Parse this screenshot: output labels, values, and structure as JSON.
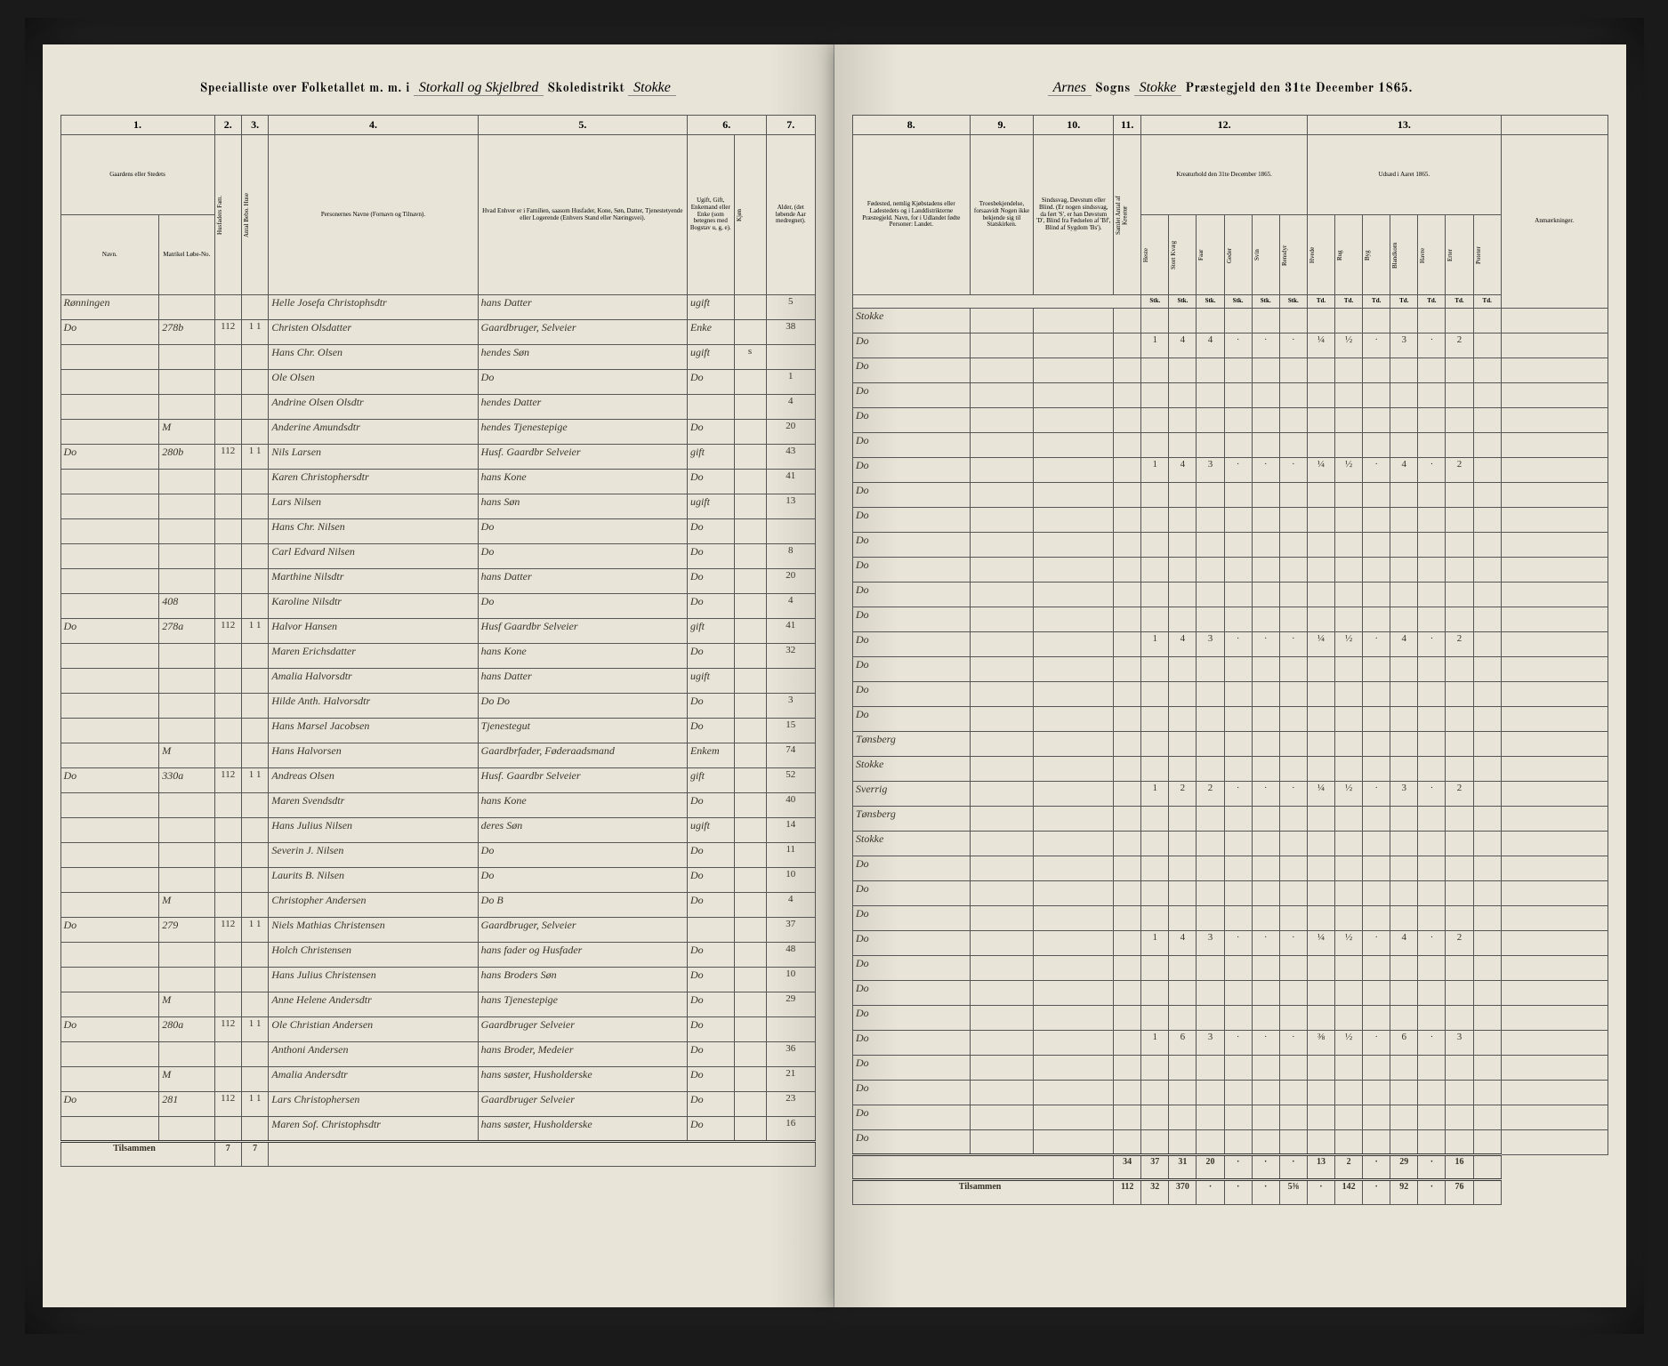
{
  "header": {
    "left_printed_1": "Specialliste over Folketallet m. m. i",
    "left_cursive_1": "Storkall og Skjelbred",
    "left_printed_2": "Skoledistrikt",
    "left_cursive_2": "Stokke",
    "right_cursive_1": "Arnes",
    "right_printed_1": "Sogns",
    "right_cursive_2": "Stokke",
    "right_printed_2": "Præstegjeld den 31te December 1865."
  },
  "left_columns": {
    "c1": "1.",
    "c2": "2.",
    "c3": "3.",
    "c4": "4.",
    "c5": "5.",
    "c6": "6.",
    "c7": "7.",
    "h1": "Gaardens eller Stedets",
    "h1a": "Navn.",
    "h1b": "Matrikel Løbe-No.",
    "h2": "Husfaders Fam.",
    "h3": "Antal Bebo. Huse",
    "h4": "Personernes Navne (Fornavn og Tilnavn).",
    "h5": "Hvad Enhver er i Familien, saasom Husfader, Kone, Søn, Datter, Tjenestetyende eller Logerende (Enhvers Stand eller Næringsvei).",
    "h6a": "Ugift, Gift, Enkemand eller Enke (som betegnes med Bogstav u, g, e).",
    "h6b": "Kjøn",
    "h7": "Alder, (det løbende Aar medregnet)."
  },
  "right_columns": {
    "c8": "8.",
    "c9": "9.",
    "c10": "10.",
    "c11": "11.",
    "c12": "12.",
    "c13": "13.",
    "h8": "Fødested, nemlig Kjøbstadens eller Ladestedets og i Landdistrikterne Præstegjeld. Navn, for i Udlandet fødte Personer: Landet.",
    "h9": "Troesbekjendelse, forsaavidt Nogen ikke bekjende sig til Statskirken.",
    "h10": "Sindssvag, Døvstum eller Blind. (Er nogen sindssvag, da ført 'S', er han Døvstum 'D', Blind fra Fødselen af 'Bf', Blind af Sygdom 'Bs').",
    "h11": "Samlet Antal af Kreatur",
    "h12": "Kreaturhold den 31te December 1865.",
    "h13": "Udsæd i Aaret 1865.",
    "h14": "Anmærkninger.",
    "sub12": [
      "Heste",
      "Stort Kvæg",
      "Faar",
      "Geder",
      "Svin",
      "Rensdyr"
    ],
    "sub13": [
      "Hvede",
      "Rug",
      "Byg",
      "Blandkorn",
      "Havre",
      "Erter",
      "Poteter"
    ],
    "unit": "Stk.",
    "unit2": "Td."
  },
  "rows": [
    {
      "farm": "Rønningen",
      "mno": "",
      "hf": "",
      "bb": "",
      "name": "Helle Josefa Christophsdtr",
      "rel": "hans Datter",
      "civ": "ugift",
      "sex": "",
      "age": "5",
      "birth": "Stokke"
    },
    {
      "farm": "Do",
      "mno": "278b",
      "hf": "112",
      "bb": "1 1",
      "name": "Christen Olsdatter",
      "rel": "Gaardbruger, Selveier",
      "civ": "Enke",
      "sex": "",
      "age": "38",
      "birth": "Do",
      "k": [
        "1",
        "4",
        "4",
        "·",
        "·",
        "·",
        "¼",
        "½",
        "·",
        "3",
        "·",
        "2"
      ]
    },
    {
      "farm": "",
      "mno": "",
      "hf": "",
      "bb": "",
      "name": "Hans Chr. Olsen",
      "rel": "hendes Søn",
      "civ": "ugift",
      "sex": "s",
      "age": "",
      "birth": "Do"
    },
    {
      "farm": "",
      "mno": "",
      "hf": "",
      "bb": "",
      "name": "Ole Olsen",
      "rel": "Do",
      "civ": "Do",
      "sex": "",
      "age": "1",
      "birth": "Do"
    },
    {
      "farm": "",
      "mno": "",
      "hf": "",
      "bb": "",
      "name": "Andrine Olsen Olsdtr",
      "rel": "hendes Datter",
      "civ": "",
      "sex": "",
      "age": "4",
      "birth": "Do"
    },
    {
      "farm": "",
      "mno": "M",
      "hf": "",
      "bb": "",
      "name": "Anderine Amundsdtr",
      "rel": "hendes Tjenestepige",
      "civ": "Do",
      "sex": "",
      "age": "20",
      "birth": "Do"
    },
    {
      "farm": "Do",
      "mno": "280b",
      "hf": "112",
      "bb": "1 1",
      "name": "Nils Larsen",
      "rel": "Husf. Gaardbr Selveier",
      "civ": "gift",
      "sex": "",
      "age": "43",
      "birth": "Do",
      "k": [
        "1",
        "4",
        "3",
        "·",
        "·",
        "·",
        "¼",
        "½",
        "·",
        "4",
        "·",
        "2"
      ]
    },
    {
      "farm": "",
      "mno": "",
      "hf": "",
      "bb": "",
      "name": "Karen Christophersdtr",
      "rel": "hans Kone",
      "civ": "Do",
      "sex": "",
      "age": "41",
      "birth": "Do"
    },
    {
      "farm": "",
      "mno": "",
      "hf": "",
      "bb": "",
      "name": "Lars Nilsen",
      "rel": "hans Søn",
      "civ": "ugift",
      "sex": "",
      "age": "13",
      "birth": "Do"
    },
    {
      "farm": "",
      "mno": "",
      "hf": "",
      "bb": "",
      "name": "Hans Chr. Nilsen",
      "rel": "Do",
      "civ": "Do",
      "sex": "",
      "age": "",
      "birth": "Do"
    },
    {
      "farm": "",
      "mno": "",
      "hf": "",
      "bb": "",
      "name": "Carl Edvard Nilsen",
      "rel": "Do",
      "civ": "Do",
      "sex": "",
      "age": "8",
      "birth": "Do"
    },
    {
      "farm": "",
      "mno": "",
      "hf": "",
      "bb": "",
      "name": "Marthine Nilsdtr",
      "rel": "hans Datter",
      "civ": "Do",
      "sex": "",
      "age": "20",
      "birth": "Do"
    },
    {
      "farm": "",
      "mno": "408",
      "hf": "",
      "bb": "",
      "name": "Karoline Nilsdtr",
      "rel": "Do",
      "civ": "Do",
      "sex": "",
      "age": "4",
      "birth": "Do"
    },
    {
      "farm": "Do",
      "mno": "278a",
      "hf": "112",
      "bb": "1 1",
      "name": "Halvor Hansen",
      "rel": "Husf Gaardbr Selveier",
      "civ": "gift",
      "sex": "",
      "age": "41",
      "birth": "Do",
      "k": [
        "1",
        "4",
        "3",
        "·",
        "·",
        "·",
        "¼",
        "½",
        "·",
        "4",
        "·",
        "2"
      ]
    },
    {
      "farm": "",
      "mno": "",
      "hf": "",
      "bb": "",
      "name": "Maren Erichsdatter",
      "rel": "hans Kone",
      "civ": "Do",
      "sex": "",
      "age": "32",
      "birth": "Do"
    },
    {
      "farm": "",
      "mno": "",
      "hf": "",
      "bb": "",
      "name": "Amalia Halvorsdtr",
      "rel": "hans Datter",
      "civ": "ugift",
      "sex": "",
      "age": "",
      "birth": "Do"
    },
    {
      "farm": "",
      "mno": "",
      "hf": "",
      "bb": "",
      "name": "Hilde Anth. Halvorsdtr",
      "rel": "Do   Do",
      "civ": "Do",
      "sex": "",
      "age": "3",
      "birth": "Do"
    },
    {
      "farm": "",
      "mno": "",
      "hf": "",
      "bb": "",
      "name": "Hans Marsel Jacobsen",
      "rel": "Tjenestegut",
      "civ": "Do",
      "sex": "",
      "age": "15",
      "birth": "Tønsberg"
    },
    {
      "farm": "",
      "mno": "M",
      "hf": "",
      "bb": "",
      "name": "Hans Halvorsen",
      "rel": "Gaardbrfader, Føderaadsmand",
      "civ": "Enkem",
      "sex": "",
      "age": "74",
      "birth": "Stokke"
    },
    {
      "farm": "Do",
      "mno": "330a",
      "hf": "112",
      "bb": "1 1",
      "name": "Andreas Olsen",
      "rel": "Husf. Gaardbr Selveier",
      "civ": "gift",
      "sex": "",
      "age": "52",
      "birth": "Sverrig",
      "k": [
        "1",
        "2",
        "2",
        "·",
        "·",
        "·",
        "¼",
        "½",
        "·",
        "3",
        "·",
        "2"
      ]
    },
    {
      "farm": "",
      "mno": "",
      "hf": "",
      "bb": "",
      "name": "Maren Svendsdtr",
      "rel": "hans Kone",
      "civ": "Do",
      "sex": "",
      "age": "40",
      "birth": "Tønsberg"
    },
    {
      "farm": "",
      "mno": "",
      "hf": "",
      "bb": "",
      "name": "Hans Julius Nilsen",
      "rel": "deres Søn",
      "civ": "ugift",
      "sex": "",
      "age": "14",
      "birth": "Stokke"
    },
    {
      "farm": "",
      "mno": "",
      "hf": "",
      "bb": "",
      "name": "Severin J. Nilsen",
      "rel": "Do",
      "civ": "Do",
      "sex": "",
      "age": "11",
      "birth": "Do"
    },
    {
      "farm": "",
      "mno": "",
      "hf": "",
      "bb": "",
      "name": "Laurits B. Nilsen",
      "rel": "Do",
      "civ": "Do",
      "sex": "",
      "age": "10",
      "birth": "Do"
    },
    {
      "farm": "",
      "mno": "M",
      "hf": "",
      "bb": "",
      "name": "Christopher Andersen",
      "rel": "Do     B",
      "civ": "Do",
      "sex": "",
      "age": "4",
      "birth": "Do"
    },
    {
      "farm": "Do",
      "mno": "279",
      "hf": "112",
      "bb": "1 1",
      "name": "Niels Mathias Christensen",
      "rel": "Gaardbruger, Selveier",
      "civ": "",
      "sex": "",
      "age": "37",
      "birth": "Do",
      "k": [
        "1",
        "4",
        "3",
        "·",
        "·",
        "·",
        "¼",
        "½",
        "·",
        "4",
        "·",
        "2"
      ]
    },
    {
      "farm": "",
      "mno": "",
      "hf": "",
      "bb": "",
      "name": "Holch Christensen",
      "rel": "hans fader og Husfader",
      "civ": "Do",
      "sex": "",
      "age": "48",
      "birth": "Do"
    },
    {
      "farm": "",
      "mno": "",
      "hf": "",
      "bb": "",
      "name": "Hans Julius Christensen",
      "rel": "hans Broders Søn",
      "civ": "Do",
      "sex": "",
      "age": "10",
      "birth": "Do"
    },
    {
      "farm": "",
      "mno": "M",
      "hf": "",
      "bb": "",
      "name": "Anne Helene Andersdtr",
      "rel": "hans Tjenestepige",
      "civ": "Do",
      "sex": "",
      "age": "29",
      "birth": "Do"
    },
    {
      "farm": "Do",
      "mno": "280a",
      "hf": "112",
      "bb": "1 1",
      "name": "Ole Christian Andersen",
      "rel": "Gaardbruger Selveier",
      "civ": "Do",
      "sex": "",
      "age": "",
      "birth": "Do",
      "k": [
        "1",
        "6",
        "3",
        "·",
        "·",
        "·",
        "⅜",
        "½",
        "·",
        "6",
        "·",
        "3"
      ]
    },
    {
      "farm": "",
      "mno": "",
      "hf": "",
      "bb": "",
      "name": "Anthoni Andersen",
      "rel": "hans Broder, Medeier",
      "civ": "Do",
      "sex": "",
      "age": "36",
      "birth": "Do"
    },
    {
      "farm": "",
      "mno": "M",
      "hf": "",
      "bb": "",
      "name": "Amalia Andersdtr",
      "rel": "hans søster, Husholderske",
      "civ": "Do",
      "sex": "",
      "age": "21",
      "birth": "Do"
    },
    {
      "farm": "Do",
      "mno": "281",
      "hf": "112",
      "bb": "1 1",
      "name": "Lars Christophersen",
      "rel": "Gaardbruger Selveier",
      "civ": "Do",
      "sex": "",
      "age": "23",
      "birth": "Do"
    },
    {
      "farm": "",
      "mno": "",
      "hf": "",
      "bb": "",
      "name": "Maren Sof. Christophsdtr",
      "rel": "hans søster, Husholderske",
      "civ": "Do",
      "sex": "",
      "age": "16",
      "birth": "Do"
    }
  ],
  "footer": {
    "tilsammen": "Tilsammen",
    "left_totals": [
      "7",
      "7"
    ],
    "right_totals": [
      "34",
      "37",
      "31",
      "20",
      "·",
      "·",
      "·",
      "13",
      "2",
      "·",
      "29",
      "·",
      "16"
    ],
    "right_totals2": [
      "112",
      "32",
      "370",
      "·",
      "·",
      "·",
      "5⅜",
      "·",
      "142",
      "·",
      "92",
      "·",
      "76"
    ]
  }
}
